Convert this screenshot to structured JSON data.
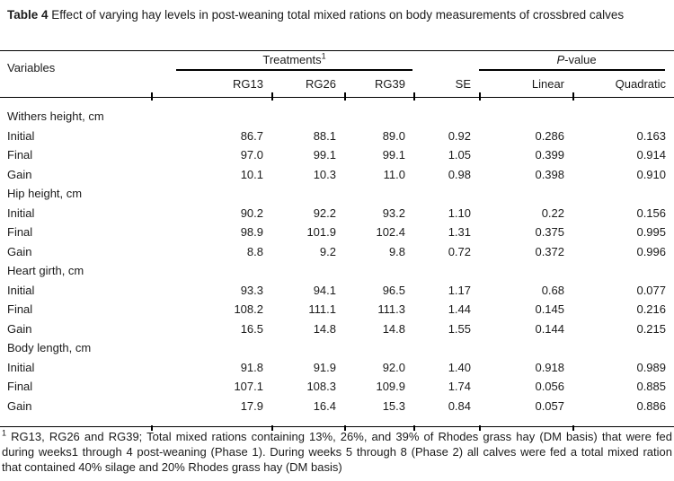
{
  "title": {
    "label": "Table 4",
    "text": "Effect of varying hay levels in post-weaning total mixed rations on body measurements of crossbred calves"
  },
  "table": {
    "header": {
      "variables": "Variables",
      "treatments": "Treatments",
      "treatments_sup": "1",
      "pvalue_prefix": "P",
      "pvalue_suffix": "-value",
      "subcolumns": [
        "RG13",
        "RG26",
        "RG39",
        "SE",
        "Linear",
        "Quadratic"
      ]
    },
    "sections": [
      {
        "label": "Withers height, cm",
        "rows": [
          {
            "label": "Initial",
            "values": [
              "86.7",
              "88.1",
              "89.0",
              "0.92",
              "0.286",
              "0.163"
            ]
          },
          {
            "label": "Final",
            "values": [
              "97.0",
              "99.1",
              "99.1",
              "1.05",
              "0.399",
              "0.914"
            ]
          },
          {
            "label": "Gain",
            "values": [
              "10.1",
              "10.3",
              "11.0",
              "0.98",
              "0.398",
              "0.910"
            ]
          }
        ]
      },
      {
        "label": "Hip height, cm",
        "rows": [
          {
            "label": "Initial",
            "values": [
              "90.2",
              "92.2",
              "93.2",
              "1.10",
              "0.22",
              "0.156"
            ]
          },
          {
            "label": "Final",
            "values": [
              "98.9",
              "101.9",
              "102.4",
              "1.31",
              "0.375",
              "0.995"
            ]
          },
          {
            "label": "Gain",
            "values": [
              "8.8",
              "9.2",
              "9.8",
              "0.72",
              "0.372",
              "0.996"
            ]
          }
        ]
      },
      {
        "label": "Heart girth, cm",
        "rows": [
          {
            "label": "Initial",
            "values": [
              "93.3",
              "94.1",
              "96.5",
              "1.17",
              "0.68",
              "0.077"
            ]
          },
          {
            "label": "Final",
            "values": [
              "108.2",
              "111.1",
              "111.3",
              "1.44",
              "0.145",
              "0.216"
            ]
          },
          {
            "label": "Gain",
            "values": [
              "16.5",
              "14.8",
              "14.8",
              "1.55",
              "0.144",
              "0.215"
            ]
          }
        ]
      },
      {
        "label": "Body length, cm",
        "rows": [
          {
            "label": "Initial",
            "values": [
              "91.8",
              "91.9",
              "92.0",
              "1.40",
              "0.918",
              "0.989"
            ]
          },
          {
            "label": "Final",
            "values": [
              "107.1",
              "108.3",
              "109.9",
              "1.74",
              "0.056",
              "0.885"
            ]
          },
          {
            "label": "Gain",
            "values": [
              "17.9",
              "16.4",
              "15.3",
              "0.84",
              "0.057",
              "0.886"
            ]
          }
        ]
      }
    ]
  },
  "footnote": {
    "sup": "1",
    "text": "RG13, RG26 and RG39; Total mixed rations containing 13%, 26%, and 39% of Rhodes grass hay (DM basis) that were fed during weeks1 through 4 post-weaning (Phase 1). During weeks 5 through 8 (Phase 2) all calves were fed a total mixed ration that contained 40% silage and 20% Rhodes grass hay (DM basis)"
  },
  "colors": {
    "text": "#1b1b1b",
    "rule": "#000000",
    "background": "#ffffff"
  }
}
